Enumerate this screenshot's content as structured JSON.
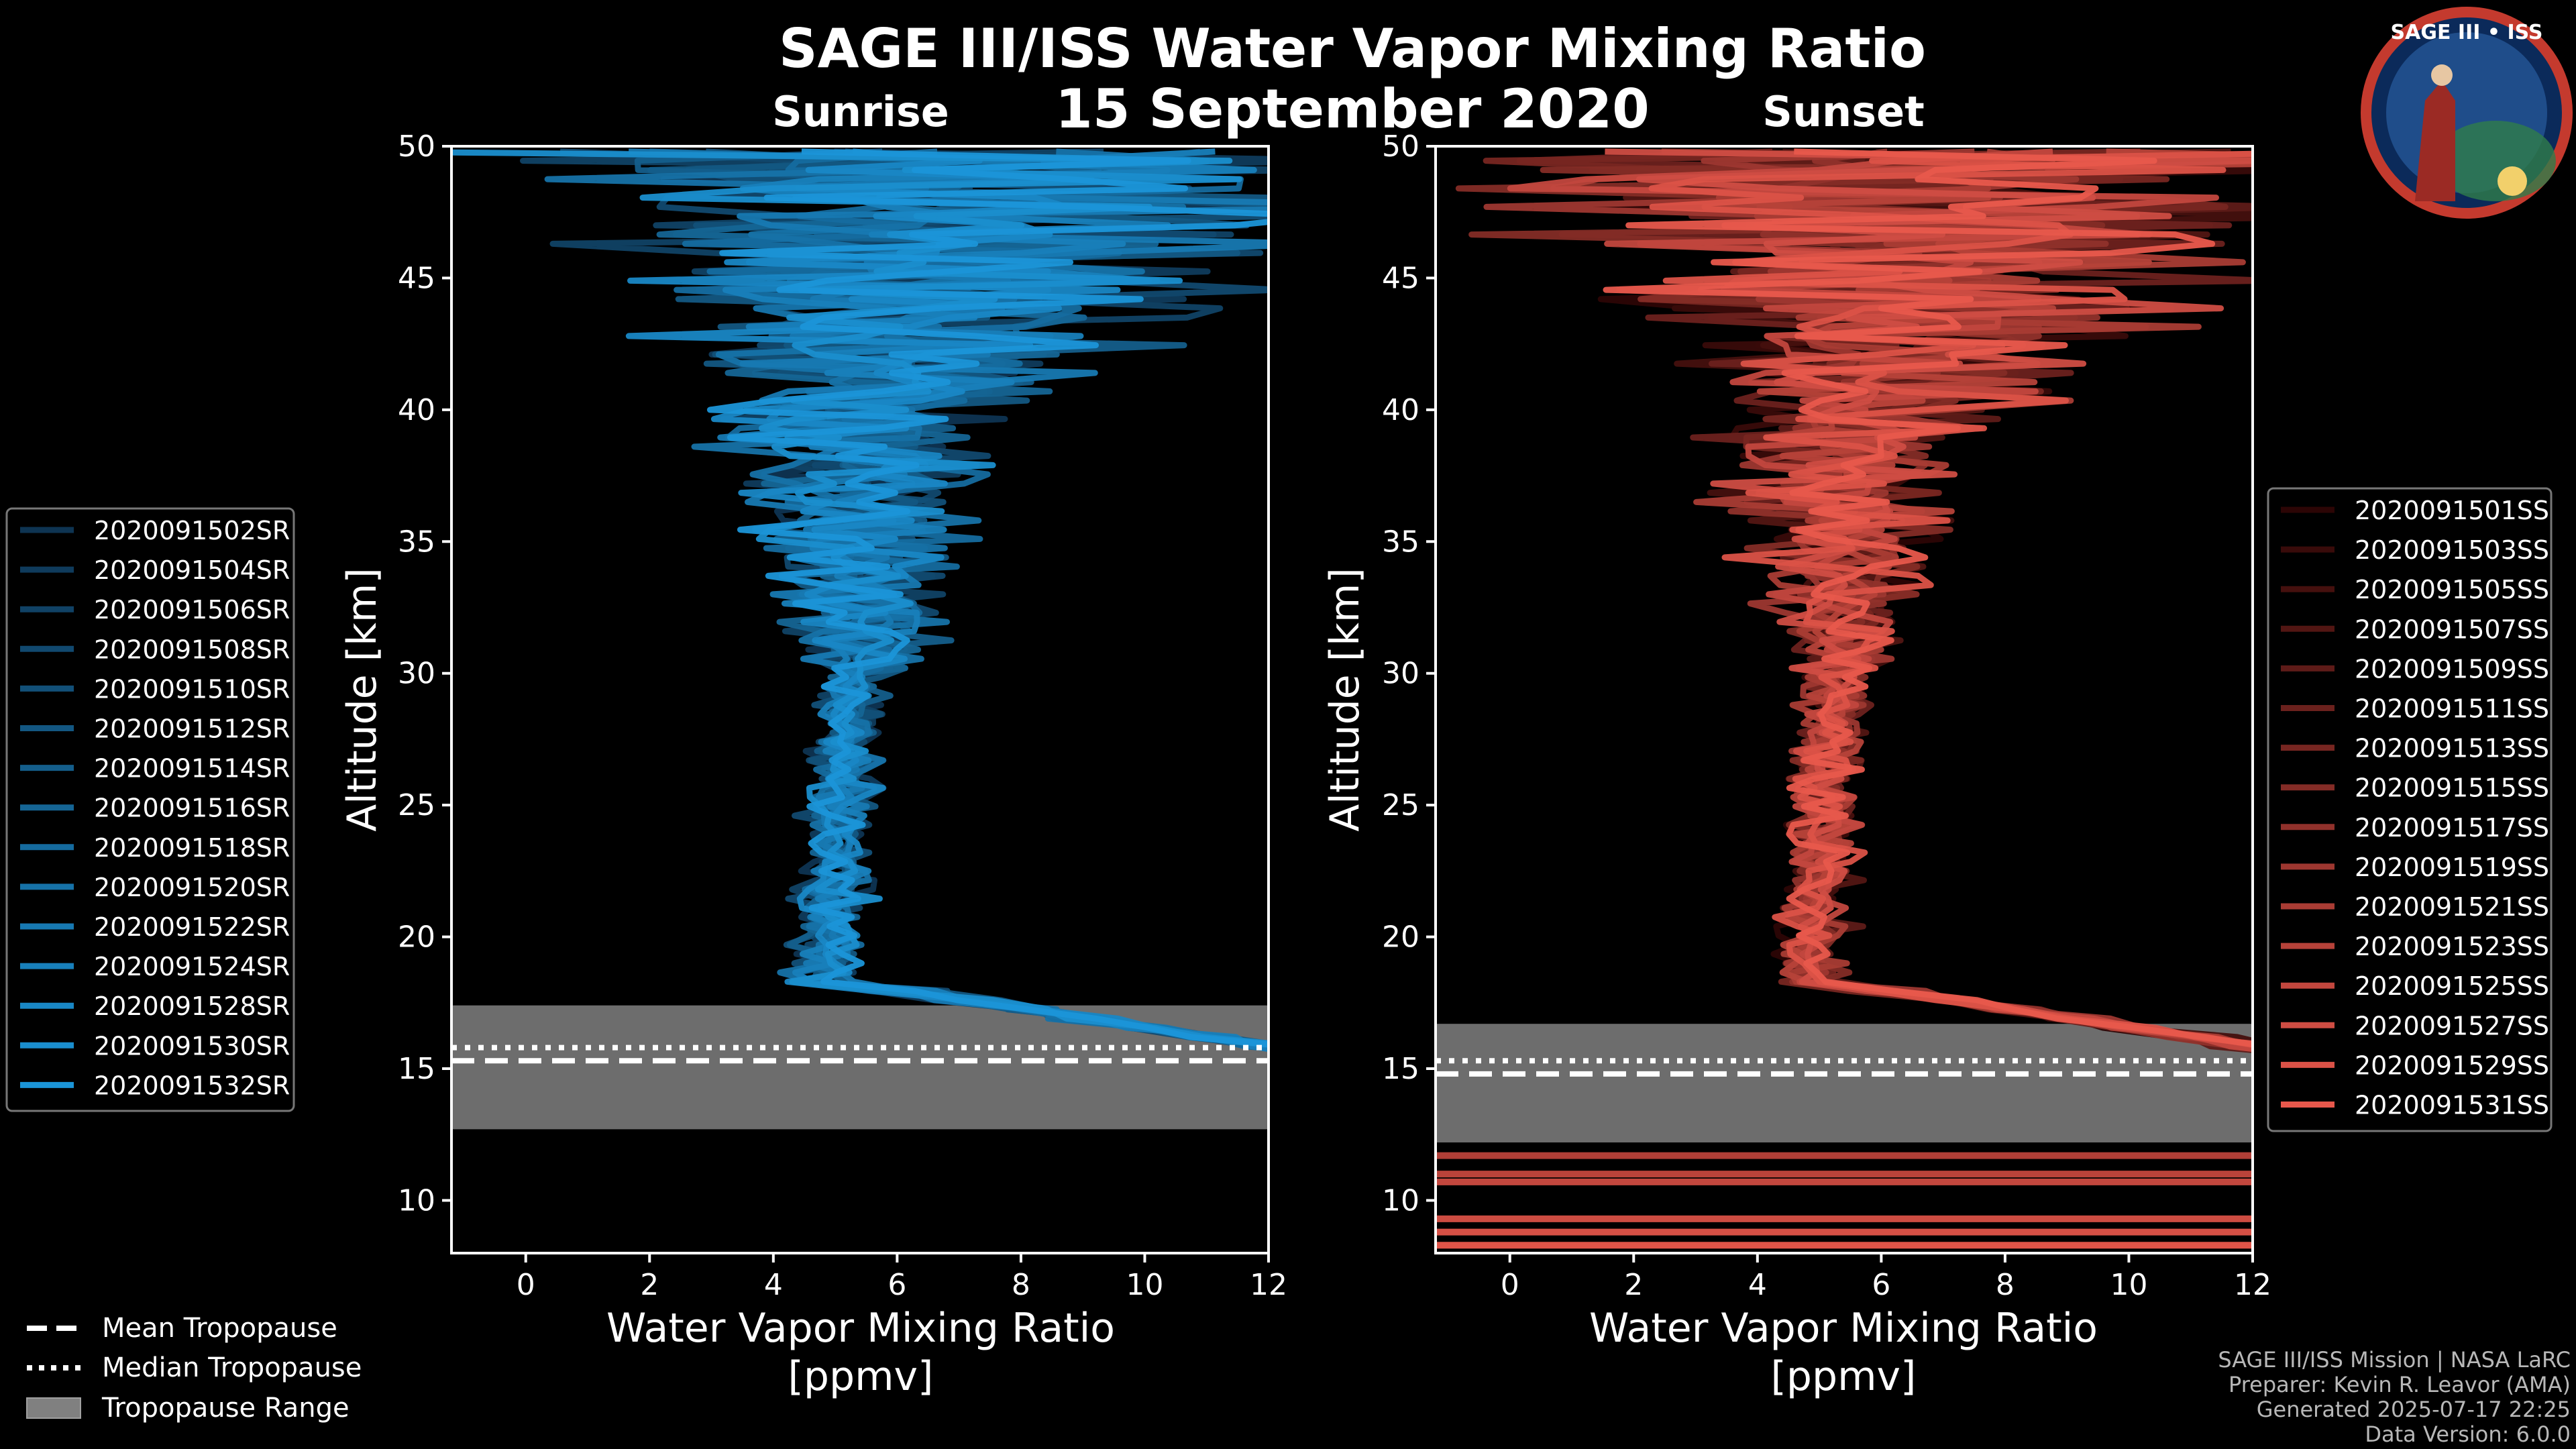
{
  "chart_data": {
    "title": "SAGE III/ISS Water Vapor Mixing Ratio",
    "date": "15 September 2020",
    "logo_text": "SAGE III • ISS",
    "footer": [
      "SAGE III/ISS Mission | NASA LaRC",
      "Preparer: Kevin R. Leavor (AMA)",
      "Generated 2025-07-17 22:25",
      "Data Version: 6.0.0"
    ],
    "tropopause_legend": {
      "mean": "Mean Tropopause",
      "median": "Median Tropopause",
      "range": "Tropopause Range"
    },
    "panels": [
      {
        "type": "line",
        "subtitle": "Sunrise",
        "xlabel": "Water Vapor Mixing Ratio",
        "xlabel_unit": "[ppmv]",
        "ylabel": "Altitude [km]",
        "xlim": [
          -1.2,
          12
        ],
        "ylim": [
          8,
          50
        ],
        "xticks": [
          "0",
          "2",
          "4",
          "6",
          "8",
          "10",
          "12"
        ],
        "yticks": [
          "10",
          "15",
          "20",
          "25",
          "30",
          "35",
          "40",
          "45",
          "50"
        ],
        "tropopause": {
          "range": [
            12.7,
            17.4
          ],
          "mean": 15.3,
          "median": 15.8
        },
        "legend_position": "left",
        "colors": {
          "dark": "#0e3452",
          "light": "#1b95d8"
        },
        "series": [
          "2020091502SR",
          "2020091504SR",
          "2020091506SR",
          "2020091508SR",
          "2020091510SR",
          "2020091512SR",
          "2020091514SR",
          "2020091516SR",
          "2020091518SR",
          "2020091520SR",
          "2020091522SR",
          "2020091524SR",
          "2020091528SR",
          "2020091530SR",
          "2020091532SR"
        ],
        "grid": false
      },
      {
        "type": "line",
        "subtitle": "Sunset",
        "xlabel": "Water Vapor Mixing Ratio",
        "xlabel_unit": "[ppmv]",
        "ylabel": "Altitude [km]",
        "xlim": [
          -1.2,
          12
        ],
        "ylim": [
          8,
          50
        ],
        "xticks": [
          "0",
          "2",
          "4",
          "6",
          "8",
          "10",
          "12"
        ],
        "yticks": [
          "10",
          "15",
          "20",
          "25",
          "30",
          "35",
          "40",
          "45",
          "50"
        ],
        "tropopause": {
          "range": [
            12.2,
            16.7
          ],
          "mean": 14.8,
          "median": 15.3
        },
        "legend_position": "right",
        "colors": {
          "dark": "#2c0505",
          "light": "#e8584c"
        },
        "series": [
          "2020091501SS",
          "2020091503SS",
          "2020091505SS",
          "2020091507SS",
          "2020091509SS",
          "2020091511SS",
          "2020091513SS",
          "2020091515SS",
          "2020091517SS",
          "2020091519SS",
          "2020091521SS",
          "2020091523SS",
          "2020091525SS",
          "2020091527SS",
          "2020091529SS",
          "2020091531SS"
        ],
        "grid": false
      }
    ]
  }
}
